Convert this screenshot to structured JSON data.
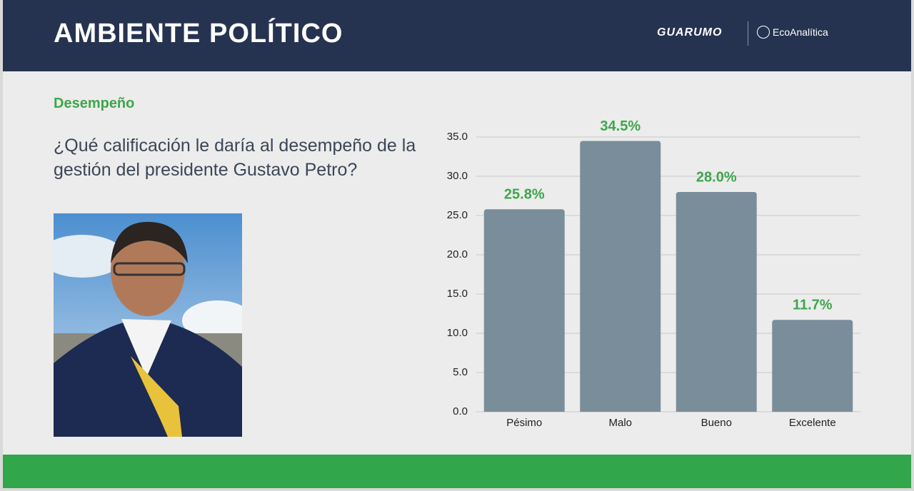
{
  "header": {
    "title": "AMBIENTE POLÍTICO",
    "logos": [
      "GUARUMO",
      "EcoAnalítica"
    ]
  },
  "section": "Desempeño",
  "question": "¿Qué calificación le daría al desempeño de la gestión del presidente Gustavo Petro?",
  "chart_data": {
    "type": "bar",
    "categories": [
      "Pésimo",
      "Malo",
      "Bueno",
      "Excelente"
    ],
    "values": [
      25.8,
      34.5,
      28.0,
      11.7
    ],
    "value_labels": [
      "25.8%",
      "34.5%",
      "28.0%",
      "11.7%"
    ],
    "color": "#7a8d9b",
    "label_color": "#3ea64c",
    "ylim": [
      0,
      35
    ],
    "yticks": [
      {
        "value": 0,
        "label": "0.0"
      },
      {
        "value": 5,
        "label": "5.0"
      },
      {
        "value": 10,
        "label": "10.0"
      },
      {
        "value": 15,
        "label": "15.0"
      },
      {
        "value": 20,
        "label": "20.0"
      },
      {
        "value": 25,
        "label": "25.0"
      },
      {
        "value": 30,
        "label": "30.0"
      },
      {
        "value": 35,
        "label": "35.0"
      }
    ],
    "grid": true
  }
}
